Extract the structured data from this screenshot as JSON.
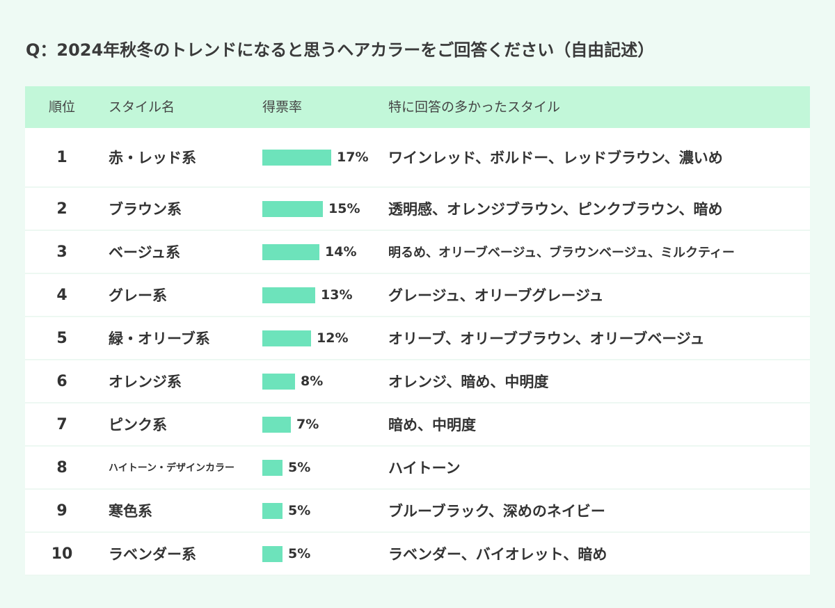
{
  "title": "Q：2024年秋冬のトレンドになると思うヘアカラーをご回答ください（自由記述）",
  "header": {
    "rank": "順位",
    "style": "スタイル名",
    "rate": "得票率",
    "detail": "特に回答の多かったスタイル"
  },
  "colors": {
    "bar": "#6de3bb",
    "header_bg": "#c2f7d9",
    "page_bg": "#eefaf4"
  },
  "chart_data": {
    "type": "table",
    "columns": [
      "順位",
      "スタイル名",
      "得票率",
      "特に回答の多かったスタイル"
    ],
    "value_unit": "%",
    "rows": [
      {
        "rank": "1",
        "style": "赤・レッド系",
        "value": 17,
        "label": "17%",
        "detail": "ワインレッド、ボルドー、レッドブラウン、濃いめ"
      },
      {
        "rank": "2",
        "style": "ブラウン系",
        "value": 15,
        "label": "15%",
        "detail": "透明感、オレンジブラウン、ピンクブラウン、暗め"
      },
      {
        "rank": "3",
        "style": "ベージュ系",
        "value": 14,
        "label": "14%",
        "detail": "明るめ、オリーブベージュ、ブラウンベージュ、ミルクティー"
      },
      {
        "rank": "4",
        "style": "グレー系",
        "value": 13,
        "label": "13%",
        "detail": "グレージュ、オリーブグレージュ"
      },
      {
        "rank": "5",
        "style": "緑・オリーブ系",
        "value": 12,
        "label": "12%",
        "detail": "オリーブ、オリーブブラウン、オリーブベージュ"
      },
      {
        "rank": "6",
        "style": "オレンジ系",
        "value": 8,
        "label": "8%",
        "detail": "オレンジ、暗め、中明度"
      },
      {
        "rank": "7",
        "style": "ピンク系",
        "value": 7,
        "label": "7%",
        "detail": "暗め、中明度"
      },
      {
        "rank": "8",
        "style": "ハイトーン・デザインカラー",
        "value": 5,
        "label": "5%",
        "detail": "ハイトーン"
      },
      {
        "rank": "9",
        "style": "寒色系",
        "value": 5,
        "label": "5%",
        "detail": "ブルーブラック、深めのネイビー"
      },
      {
        "rank": "10",
        "style": "ラベンダー系",
        "value": 5,
        "label": "5%",
        "detail": "ラベンダー、バイオレット、暗め"
      }
    ]
  }
}
